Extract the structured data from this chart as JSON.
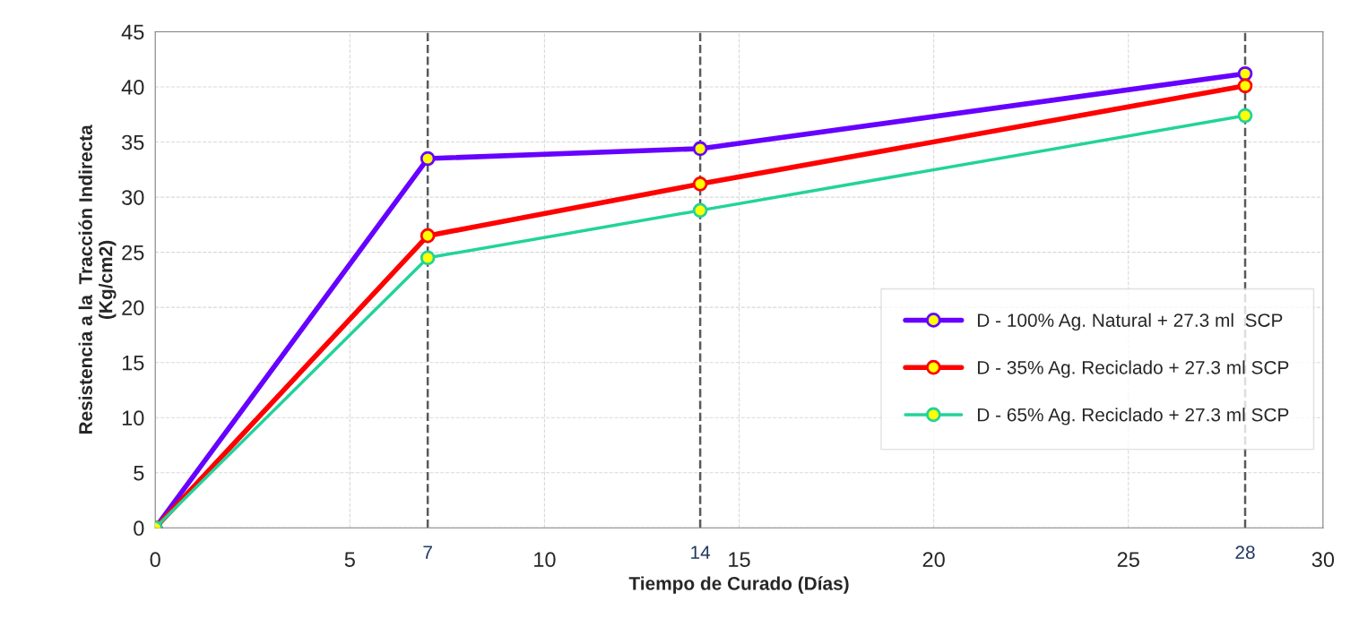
{
  "chart_data": {
    "type": "line",
    "xlabel": "Tiempo de Curado (Días)",
    "ylabel": "Resistencia a la  Tracción Indirecta\n(Kg/cm2)",
    "x": [
      0,
      7,
      14,
      28
    ],
    "series": [
      {
        "name": "D - 100% Ag. Natural + 27.3 ml  SCP",
        "color": "#6600ff",
        "values": [
          0,
          33.5,
          34.4,
          41.2
        ]
      },
      {
        "name": "D - 35% Ag. Reciclado + 27.3 ml SCP",
        "color": "#ff0000",
        "values": [
          0,
          26.5,
          31.2,
          40.1
        ]
      },
      {
        "name": "D - 65% Ag. Reciclado + 27.3 ml SCP",
        "color": "#22d39a",
        "values": [
          0,
          24.5,
          28.8,
          37.4
        ]
      }
    ],
    "xlim": [
      0,
      30
    ],
    "xticks": [
      0,
      5,
      10,
      15,
      20,
      25,
      30
    ],
    "ylim": [
      0,
      45
    ],
    "yticks": [
      0,
      5,
      10,
      15,
      20,
      25,
      30,
      35,
      40,
      45
    ],
    "ref_lines": [
      {
        "axis": "x",
        "value": 7,
        "label": "7",
        "color": "#595959",
        "line_style": "dashed"
      },
      {
        "axis": "x",
        "value": 14,
        "label": "14",
        "color": "#595959",
        "line_style": "dashed"
      },
      {
        "axis": "x",
        "value": 28,
        "label": "28",
        "color": "#595959",
        "line_style": "dashed"
      }
    ],
    "grid": true,
    "legend": "right",
    "marker": "circle",
    "line_style": "solid"
  }
}
